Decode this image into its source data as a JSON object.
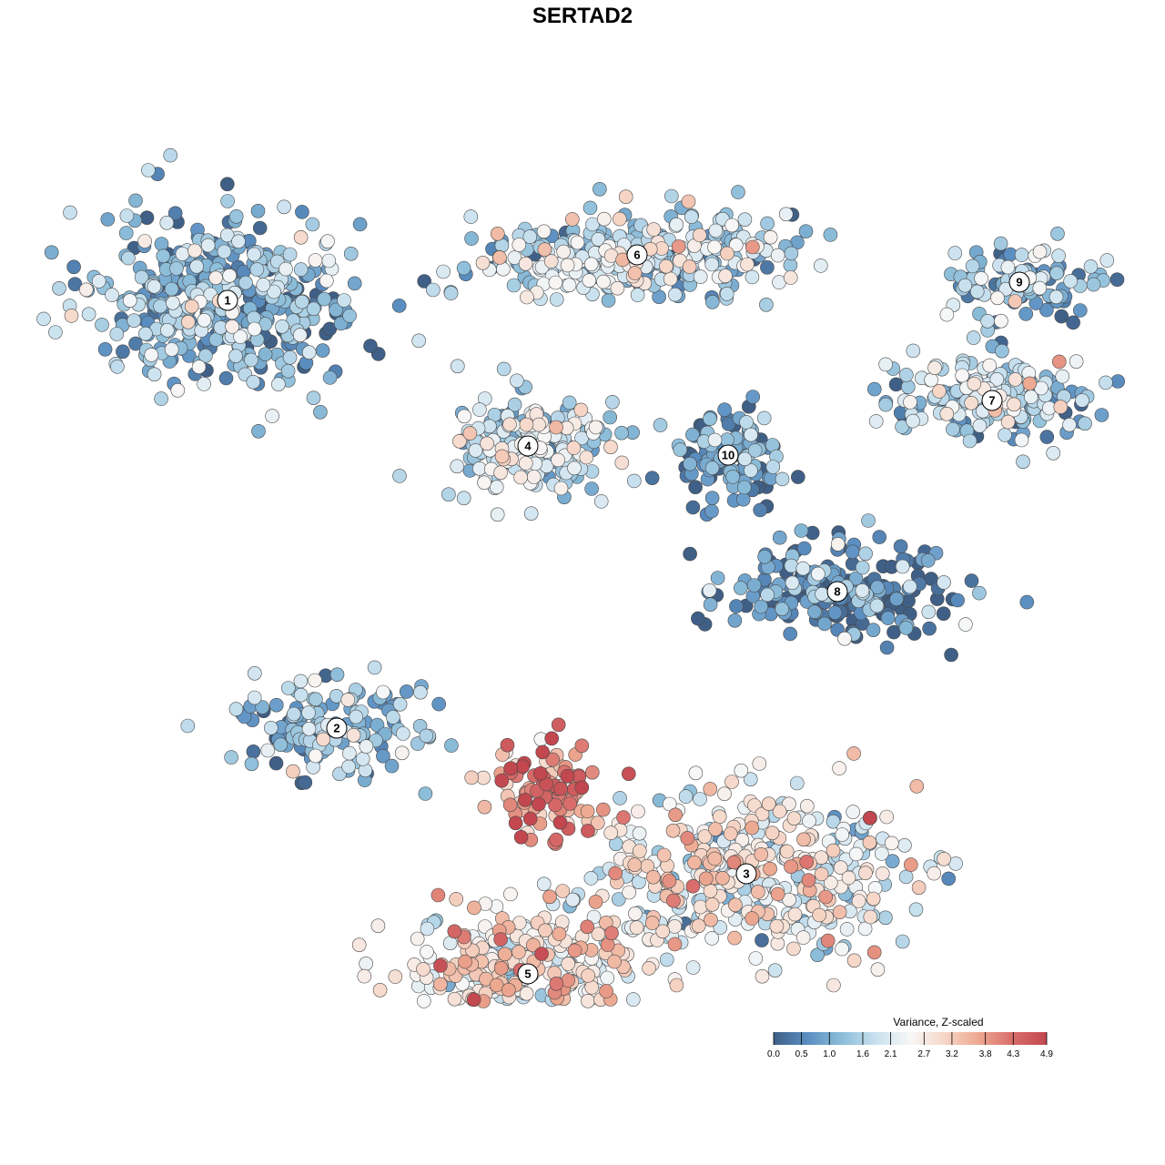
{
  "chart_data": {
    "type": "scatter",
    "title": "SERTAD2",
    "xlabel": "",
    "ylabel": "",
    "grid": false,
    "color_scale": {
      "title": "Variance, Z-scaled",
      "min": 0.0,
      "max": 4.9,
      "ticks": [
        "0.0",
        "0.5",
        "1.0",
        "1.6",
        "2.1",
        "2.7",
        "3.2",
        "3.8",
        "4.3",
        "4.9"
      ],
      "colors": [
        "#3f5f86",
        "#5b8fc2",
        "#8cbdd9",
        "#c9e1ef",
        "#f7f7f7",
        "#f6d7c8",
        "#eda890",
        "#d86d6b",
        "#c2474f"
      ],
      "legend_position": "bottom-right"
    },
    "clusters": [
      {
        "label": "1",
        "center": [
          -3.9,
          3.1
        ],
        "spread": [
          1.3,
          0.9
        ],
        "count": 460,
        "mean_value": 1.1
      },
      {
        "label": "6",
        "center": [
          0.6,
          3.6
        ],
        "spread": [
          1.5,
          0.45
        ],
        "count": 320,
        "mean_value": 1.7
      },
      {
        "label": "9",
        "center": [
          4.8,
          3.3
        ],
        "spread": [
          0.75,
          0.4
        ],
        "count": 110,
        "mean_value": 1.3
      },
      {
        "label": "7",
        "center": [
          4.5,
          2.0
        ],
        "spread": [
          1.1,
          0.4
        ],
        "count": 200,
        "mean_value": 1.6
      },
      {
        "label": "4",
        "center": [
          -0.6,
          1.5
        ],
        "spread": [
          0.8,
          0.6
        ],
        "count": 230,
        "mean_value": 1.7
      },
      {
        "label": "10",
        "center": [
          1.6,
          1.4
        ],
        "spread": [
          0.5,
          0.45
        ],
        "count": 120,
        "mean_value": 0.5
      },
      {
        "label": "8",
        "center": [
          2.8,
          -0.1
        ],
        "spread": [
          1.2,
          0.5
        ],
        "count": 230,
        "mean_value": 0.5
      },
      {
        "label": "2",
        "center": [
          -2.7,
          -1.6
        ],
        "spread": [
          0.9,
          0.5
        ],
        "count": 150,
        "mean_value": 1.2
      },
      {
        "label": "3",
        "center": [
          1.8,
          -3.2
        ],
        "spread": [
          1.7,
          0.8
        ],
        "count": 420,
        "mean_value": 2.4
      },
      {
        "label": "5",
        "center": [
          -0.6,
          -4.3
        ],
        "spread": [
          1.2,
          0.7
        ],
        "count": 340,
        "mean_value": 2.8
      },
      {
        "label": "",
        "center": [
          -0.4,
          -2.3
        ],
        "spread": [
          0.6,
          0.45
        ],
        "count": 110,
        "mean_value": 4.0
      }
    ]
  }
}
